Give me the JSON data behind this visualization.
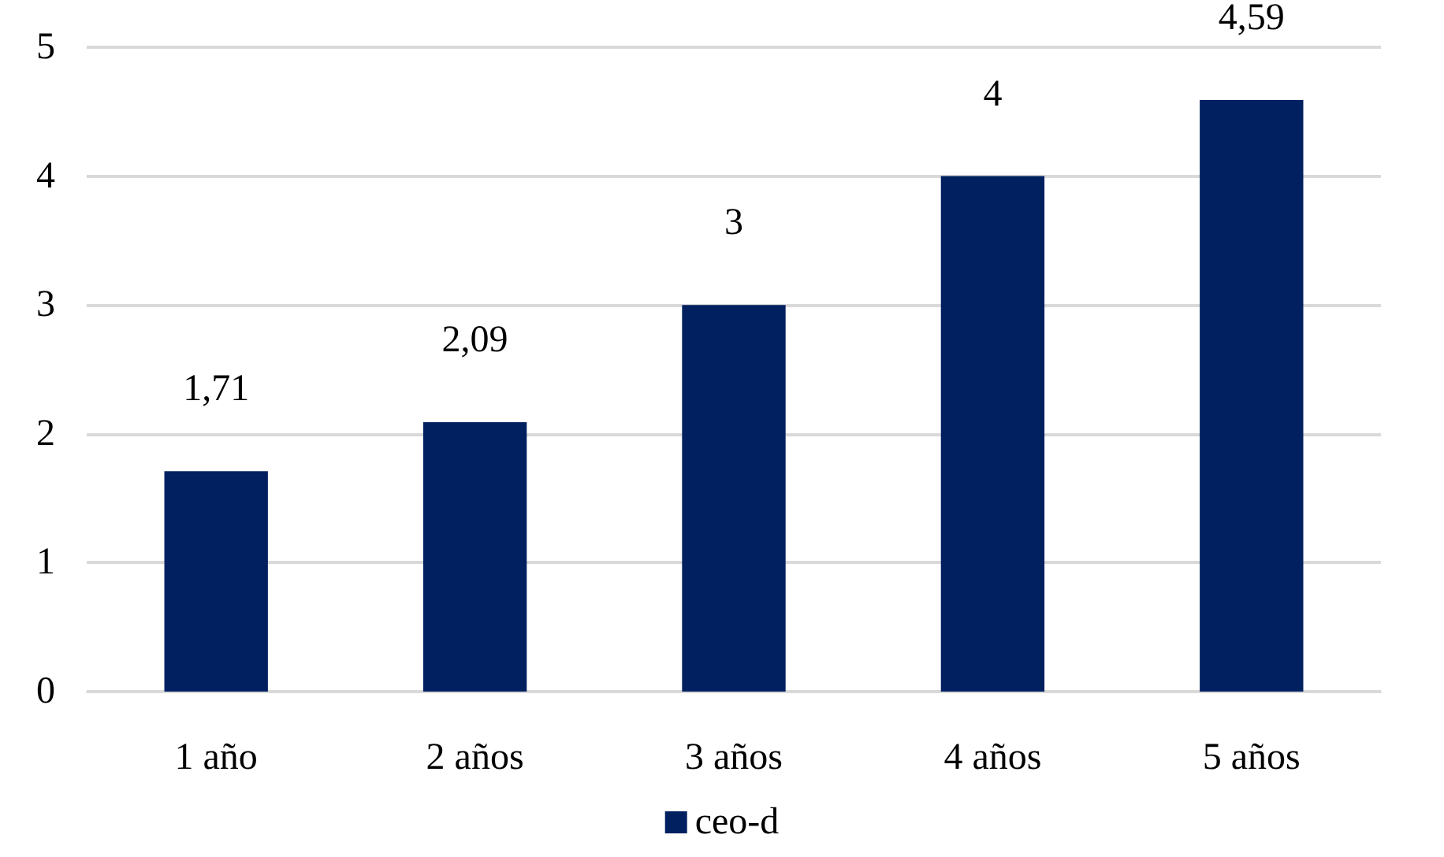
{
  "chart_data": {
    "type": "bar",
    "categories": [
      "1 año",
      "2 años",
      "3 años",
      "4 años",
      "5 años"
    ],
    "series": [
      {
        "name": "ceo-d",
        "color": "#002060",
        "values": [
          1.71,
          2.09,
          3,
          4,
          4.59
        ],
        "value_labels": [
          "1,71",
          "2,09",
          "3",
          "4",
          "4,59"
        ]
      }
    ],
    "ylim": [
      0,
      5
    ],
    "yticks": [
      0,
      1,
      2,
      3,
      4,
      5
    ],
    "grid": "y",
    "legend": "bottom"
  }
}
